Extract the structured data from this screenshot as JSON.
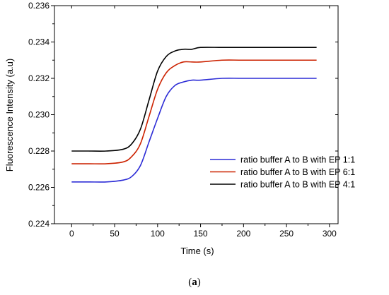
{
  "chart_data": {
    "type": "line",
    "title": "",
    "xlabel": "Time (s)",
    "ylabel": "Fluorescence Intensity (a.u)",
    "xlim": [
      -20,
      310
    ],
    "ylim": [
      0.224,
      0.236
    ],
    "xticks": [
      0,
      50,
      100,
      150,
      200,
      250,
      300
    ],
    "yticks": [
      0.224,
      0.226,
      0.228,
      0.23,
      0.232,
      0.234,
      0.236
    ],
    "xtick_labels": [
      "0",
      "50",
      "100",
      "150",
      "200",
      "250",
      "300"
    ],
    "ytick_labels": [
      "0.224",
      "0.226",
      "0.228",
      "0.230",
      "0.232",
      "0.234",
      "0.236"
    ],
    "grid": false,
    "legend_position": "center-right",
    "x": [
      0,
      20,
      40,
      60,
      70,
      80,
      90,
      100,
      110,
      120,
      130,
      140,
      150,
      175,
      200,
      250,
      285
    ],
    "series": [
      {
        "name": "ratio buffer A to B with EP 1:1",
        "color": "#2b2bd6",
        "values": [
          0.2263,
          0.2263,
          0.2263,
          0.2264,
          0.2266,
          0.2272,
          0.2285,
          0.2298,
          0.231,
          0.2316,
          0.2318,
          0.2319,
          0.2319,
          0.232,
          0.232,
          0.232,
          0.232
        ]
      },
      {
        "name": "ratio buffer A to B with EP 6:1",
        "color": "#cc2200",
        "values": [
          0.2273,
          0.2273,
          0.2273,
          0.2274,
          0.2277,
          0.2284,
          0.2299,
          0.2314,
          0.2323,
          0.2327,
          0.2329,
          0.2329,
          0.2329,
          0.233,
          0.233,
          0.233,
          0.233
        ]
      },
      {
        "name": "ratio buffer A to B with EP 4:1",
        "color": "#000000",
        "values": [
          0.228,
          0.228,
          0.228,
          0.2281,
          0.2284,
          0.2292,
          0.2308,
          0.2324,
          0.2332,
          0.2335,
          0.2336,
          0.2336,
          0.2337,
          0.2337,
          0.2337,
          0.2337,
          0.2337
        ]
      }
    ]
  },
  "caption": {
    "open": "(",
    "letter": "a",
    "close": ")"
  }
}
